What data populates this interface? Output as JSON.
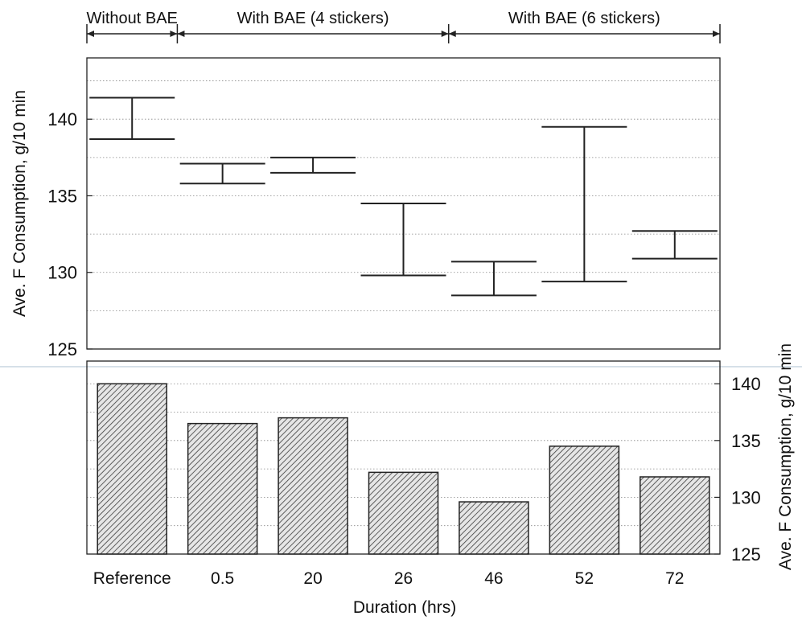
{
  "chart_data": [
    {
      "type": "errorbar",
      "ylabel": "Ave. F Consumption, g/10 min",
      "ylim": [
        125,
        144
      ],
      "yticks": [
        125,
        130,
        135,
        140
      ],
      "grid": true,
      "phase_labels": [
        {
          "label": "Without BAE",
          "span": [
            0,
            0
          ]
        },
        {
          "label": "With BAE (4 stickers)",
          "span": [
            1,
            3
          ]
        },
        {
          "label": "With BAE (6 stickers)",
          "span": [
            4,
            6
          ]
        }
      ],
      "categories": [
        "Reference",
        "0.5",
        "20",
        "26",
        "46",
        "52",
        "72"
      ],
      "ranges": [
        {
          "low": 138.7,
          "high": 141.4
        },
        {
          "low": 135.8,
          "high": 137.1
        },
        {
          "low": 136.5,
          "high": 137.5
        },
        {
          "low": 129.8,
          "high": 134.5
        },
        {
          "low": 128.5,
          "high": 130.7
        },
        {
          "low": 129.4,
          "high": 139.5
        },
        {
          "low": 130.9,
          "high": 132.7
        }
      ]
    },
    {
      "type": "bar",
      "xlabel": "Duration (hrs)",
      "ylabel": "Ave. F Consumption, g/10 min",
      "ylim": [
        125,
        142
      ],
      "yticks": [
        125,
        130,
        135,
        140
      ],
      "grid": true,
      "categories": [
        "Reference",
        "0.5",
        "20",
        "26",
        "46",
        "52",
        "72"
      ],
      "values": [
        140.0,
        136.5,
        137.0,
        132.2,
        129.6,
        134.5,
        131.8
      ]
    }
  ]
}
